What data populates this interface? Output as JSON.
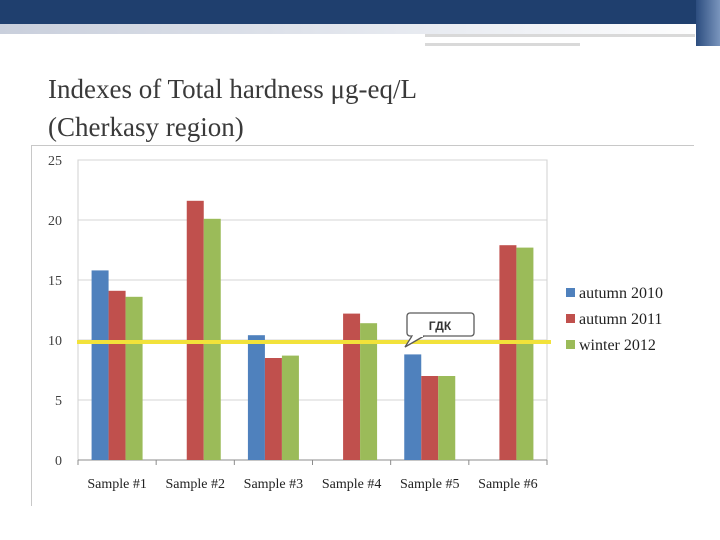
{
  "slide": {
    "title_line1": "Indexes of Total hardness μg-eq/L",
    "title_line2": "(Cherkasy region)"
  },
  "chart_data": {
    "type": "bar",
    "categories": [
      "Sample #1",
      "Sample #2",
      "Sample #3",
      "Sample #4",
      "Sample #5",
      "Sample #6"
    ],
    "series": [
      {
        "name": "autumn 2010",
        "color": "#4f81bd",
        "values": [
          15.8,
          null,
          10.4,
          null,
          8.8,
          null
        ]
      },
      {
        "name": "autumn 2011",
        "color": "#c0504d",
        "values": [
          14.1,
          21.6,
          8.5,
          12.2,
          7.0,
          17.9
        ]
      },
      {
        "name": "winter 2012",
        "color": "#9bbb59",
        "values": [
          13.6,
          20.1,
          8.7,
          11.4,
          7.0,
          17.7
        ]
      }
    ],
    "yticks": [
      0,
      5,
      10,
      15,
      20,
      25
    ],
    "ylim": [
      0,
      25
    ],
    "grid": true,
    "legend": "right",
    "reference_line": {
      "label": "ГДК",
      "value": 10,
      "color": "#f2e23a"
    }
  }
}
